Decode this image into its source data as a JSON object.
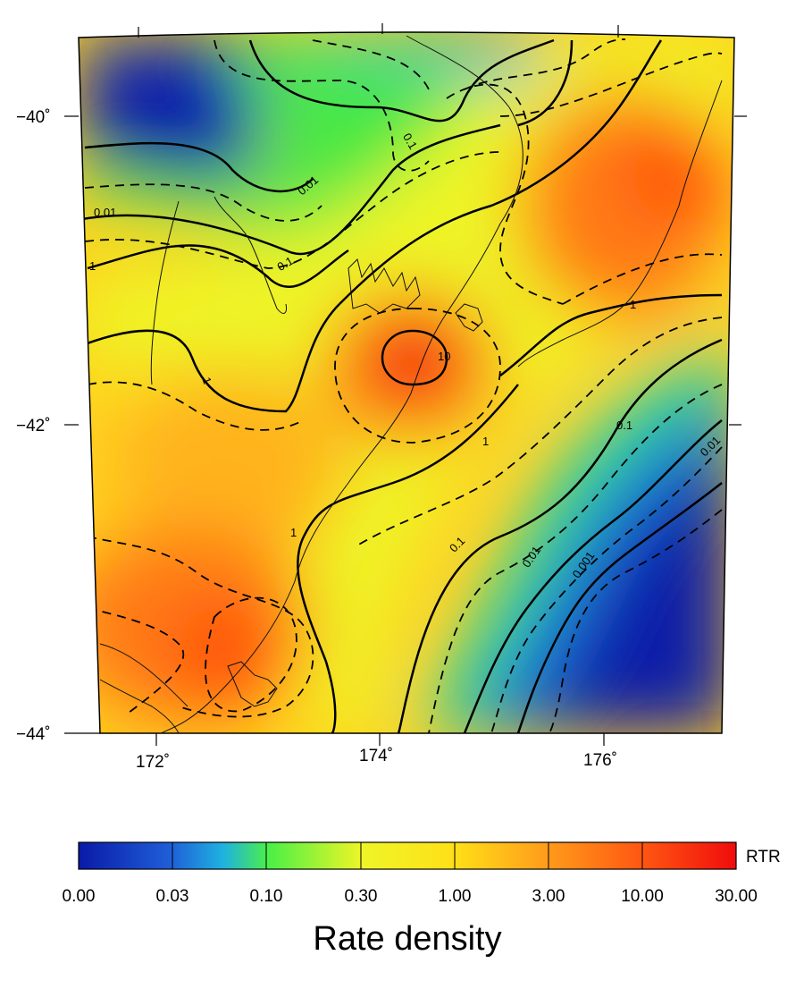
{
  "map": {
    "lat_ticks": [
      "−40˚",
      "−42˚",
      "−44˚"
    ],
    "lon_ticks": [
      "172˚",
      "174˚",
      "176˚"
    ],
    "contour_labels": [
      "0.1",
      "0.01",
      "0.01",
      "1",
      "0.1",
      "1",
      "10",
      "1",
      "1",
      "1",
      "0.1",
      "0.01",
      "0.1",
      "0.01",
      "0.001",
      "1"
    ],
    "colormap": [
      "#0a1aa8",
      "#1f73e0",
      "#22d6a0",
      "#48f045",
      "#dff52a",
      "#ffd21e",
      "#ff9a1a",
      "#ff5a12",
      "#f01010"
    ]
  },
  "colorbar": {
    "tag": "RTR",
    "tick_labels": [
      "0.00",
      "0.03",
      "0.10",
      "0.30",
      "1.00",
      "3.00",
      "10.00",
      "30.00"
    ],
    "title": "Rate density"
  }
}
